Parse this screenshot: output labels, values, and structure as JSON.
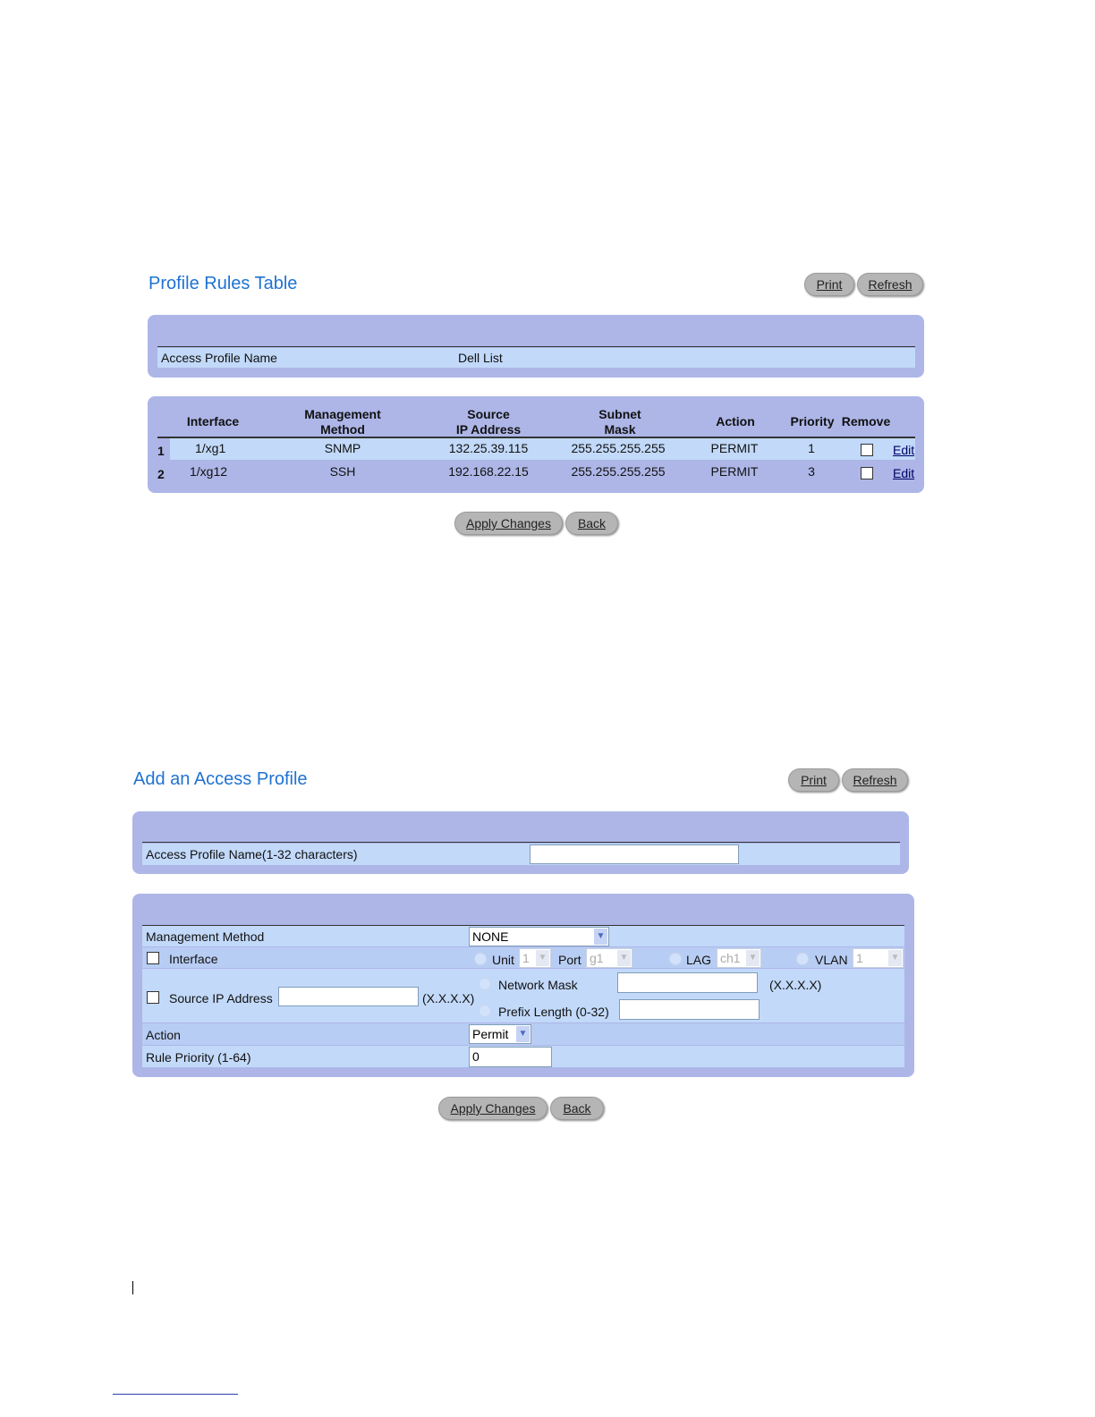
{
  "profile_rules": {
    "title": "Profile Rules Table",
    "print": "Print",
    "refresh": "Refresh",
    "name_label": "Access Profile Name",
    "name_value": "Dell List",
    "headers": {
      "interface": "Interface",
      "method1": "Management",
      "method2": "Method",
      "src1": "Source",
      "src2": "IP Address",
      "mask1": "Subnet",
      "mask2": "Mask",
      "action": "Action",
      "priority": "Priority",
      "remove": "Remove"
    },
    "rows": [
      {
        "index": "1",
        "interface": "1/xg1",
        "method": "SNMP",
        "source_ip": "132.25.39.115",
        "mask": "255.255.255.255",
        "action": "PERMIT",
        "priority": "1",
        "remove": false,
        "edit": "Edit"
      },
      {
        "index": "2",
        "interface": "1/xg12",
        "method": "SSH",
        "source_ip": "192.168.22.15",
        "mask": "255.255.255.255",
        "action": "PERMIT",
        "priority": "3",
        "remove": false,
        "edit": "Edit"
      }
    ],
    "apply": "Apply Changes",
    "back": "Back"
  },
  "add_profile": {
    "title": "Add an Access Profile",
    "print": "Print",
    "refresh": "Refresh",
    "name_label": "Access Profile Name(1-32 characters)",
    "name_value": "",
    "mgmt_label": "Management Method",
    "mgmt_value": "NONE",
    "interface_label": "Interface",
    "unit_label": "Unit",
    "unit_value": "1",
    "port_label": "Port",
    "port_value": "g1",
    "lag_label": "LAG",
    "lag_value": "ch1",
    "vlan_label": "VLAN",
    "vlan_value": "1",
    "src_label": "Source IP Address",
    "src_value": "",
    "src_hint": "(X.X.X.X)",
    "mask_label": "Network Mask",
    "mask_value": "",
    "mask_hint": "(X.X.X.X)",
    "prefix_label": "Prefix Length (0-32)",
    "prefix_value": "",
    "action_label": "Action",
    "action_value": "Permit",
    "priority_label": "Rule Priority (1-64)",
    "priority_value": "0",
    "apply": "Apply Changes",
    "back": "Back"
  },
  "colors": {
    "title": "#1f72d2",
    "panel": "#adb6e7",
    "row": "#c2d9f9",
    "button": "#b5b5b5"
  }
}
